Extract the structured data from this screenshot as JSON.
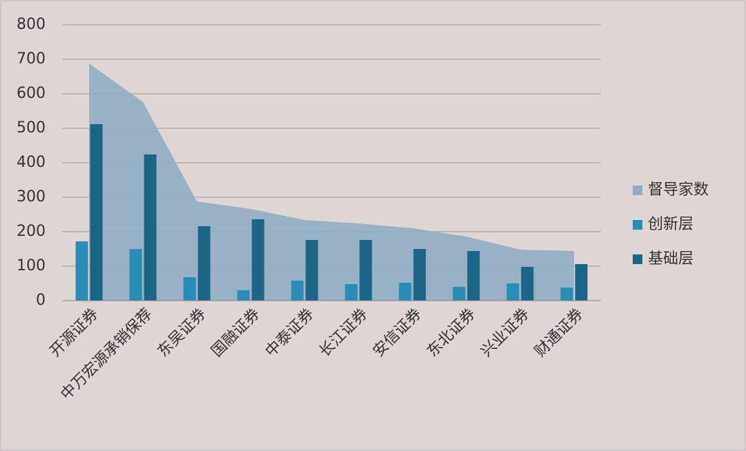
{
  "chart_data": {
    "type": "combo",
    "categories": [
      "开源证券",
      "中万宏源承销保荐",
      "东吴证券",
      "国融证券",
      "中泰证券",
      "长江证券",
      "安信证券",
      "东北证券",
      "兴业证券",
      "财通证券"
    ],
    "series": [
      {
        "name": "督导家数",
        "type": "area",
        "color": "#90adc3",
        "values": [
          688,
          576,
          288,
          266,
          234,
          224,
          210,
          186,
          148,
          144
        ]
      },
      {
        "name": "创新层",
        "type": "bar",
        "color": "#2a8db5",
        "values": [
          172,
          150,
          68,
          30,
          58,
          48,
          52,
          40,
          50,
          38
        ]
      },
      {
        "name": "基础层",
        "type": "bar",
        "color": "#1c6685",
        "values": [
          512,
          424,
          216,
          236,
          176,
          176,
          150,
          144,
          98,
          106
        ]
      }
    ],
    "ylim": [
      0,
      800
    ],
    "yticks": [
      0,
      100,
      200,
      300,
      400,
      500,
      600,
      700,
      800
    ],
    "grid": true,
    "legend": "right"
  }
}
